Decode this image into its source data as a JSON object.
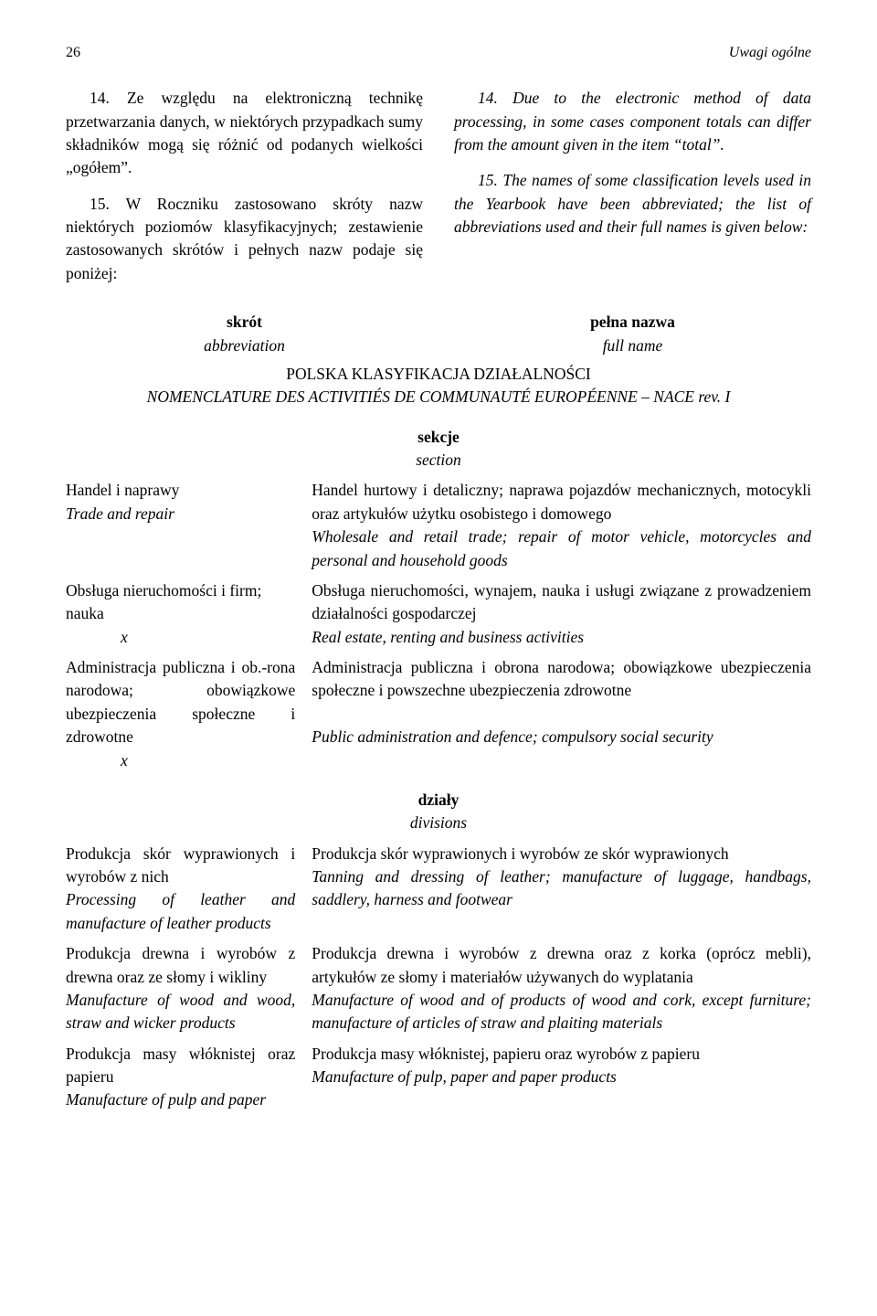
{
  "page_number": "26",
  "header_title": "Uwagi ogólne",
  "left": {
    "p14": "14. Ze względu na elektroniczną technikę przetwarzania danych, w niektórych przypadkach sumy składników mogą się różnić od podanych wielkości „ogółem”.",
    "p15": "15. W Roczniku zastosowano skróty nazw niektórych poziomów klasyfikacyjnych; zestawienie zastosowanych skrótów i pełnych nazw podaje się poniżej:"
  },
  "right": {
    "p14": "14. Due to the electronic method of data processing, in some cases component totals can differ from the amount given in the item “total”.",
    "p15": "15. The names of some classification levels used in the Yearbook have been abbreviated; the list of abbreviations used and their full names is given below:"
  },
  "col_labels": {
    "skrot": "skrót",
    "abbrev": "abbreviation",
    "pelna": "pełna nazwa",
    "fullname": "full name"
  },
  "class_head": {
    "pl": "POLSKA KLASYFIKACJA DZIAŁALNOŚCI",
    "en": "NOMENCLATURE DES ACTIVITIÉS DE COMMUNAUTÉ EUROPÉENNE – NACE rev. I"
  },
  "sec_head": {
    "pl": "sekcje",
    "en": "section"
  },
  "sections": {
    "r1": {
      "short_pl": "Handel i naprawy",
      "short_en": "Trade and repair",
      "full_pl": "Handel hurtowy i detaliczny; naprawa pojazdów mechanicznych, motocykli oraz artykułów użytku osobistego i domowego",
      "full_en": "Wholesale and retail trade; repair of motor vehicle, motorcycles and personal and household goods"
    },
    "r2": {
      "short_pl": "Obsługa nieruchomości i firm; nauka",
      "short_x": "x",
      "full_pl": "Obsługa nieruchomości, wynajem, nauka i usługi związane z prowadzeniem działalności gospodarczej",
      "full_en": "Real estate, renting and business activities"
    },
    "r3": {
      "short_pl": "Administracja publiczna i ob.-rona narodowa; obowiązkowe ubezpieczenia społeczne i zdrowotne",
      "short_x": "x",
      "full_pl": "Administracja publiczna i obrona narodowa; obowiązkowe ubezpieczenia społeczne i powszechne ubezpieczenia zdrowotne",
      "full_en": "Public administration and defence; compulsory social security"
    }
  },
  "div_head": {
    "pl": "działy",
    "en": "divisions"
  },
  "divisions": {
    "r1": {
      "short_pl": "Produkcja skór wyprawionych i wyrobów z nich",
      "short_en": "Processing of leather and manufacture of leather products",
      "full_pl": "Produkcja skór wyprawionych i wyrobów ze skór wyprawionych",
      "full_en": "Tanning and dressing of leather; manufacture of luggage, handbags, saddlery, harness and footwear"
    },
    "r2": {
      "short_pl": "Produkcja drewna i wyrobów z drewna oraz ze słomy i wikliny",
      "short_en": "Manufacture of wood and wood, straw and wicker products",
      "full_pl": "Produkcja drewna i wyrobów z drewna oraz z korka (oprócz mebli), artykułów ze słomy i materiałów używanych do wyplatania",
      "full_en": "Manufacture of wood and of products of wood and cork, except furniture; manufacture of articles of straw and plaiting materials"
    },
    "r3": {
      "short_pl": "Produkcja masy włóknistej oraz papieru",
      "short_en": "Manufacture of pulp and paper",
      "full_pl": "Produkcja masy włóknistej, papieru oraz wyrobów z papieru",
      "full_en": "Manufacture of pulp, paper and paper products"
    }
  }
}
